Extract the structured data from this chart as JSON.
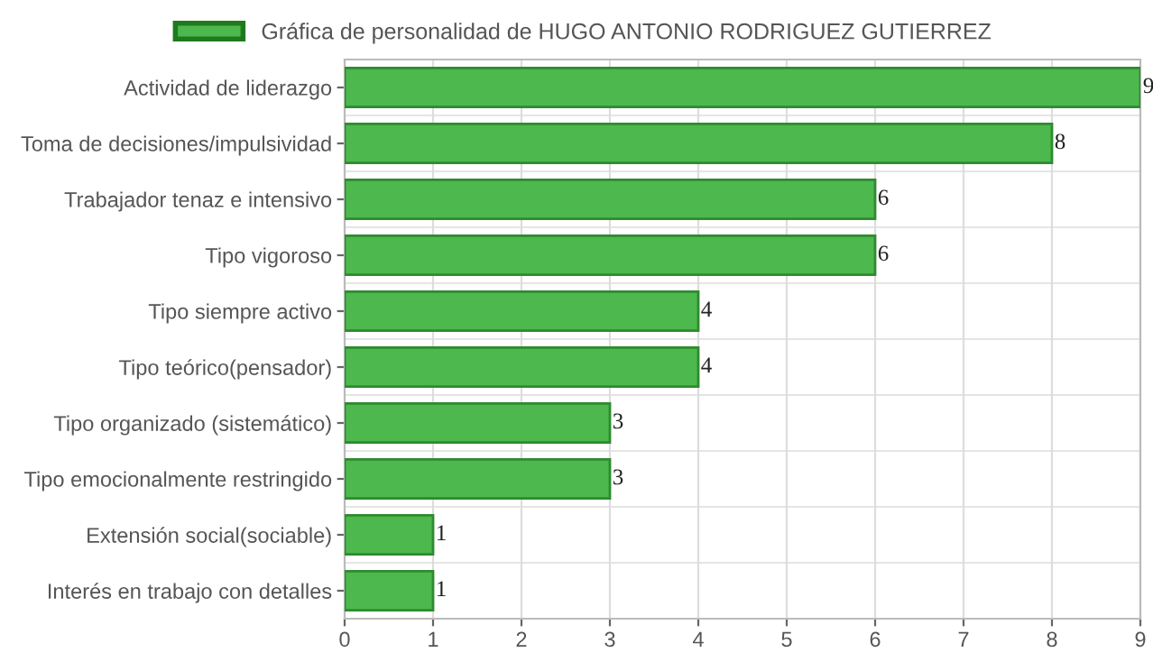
{
  "chart_data": {
    "type": "bar",
    "orientation": "horizontal",
    "categories": [
      "Actividad de liderazgo",
      "Toma de decisiones/impulsividad",
      "Trabajador tenaz e intensivo",
      "Tipo vigoroso",
      "Tipo siempre activo",
      "Tipo teórico(pensador)",
      "Tipo organizado (sistemático)",
      "Tipo emocionalmente restringido",
      "Extensión social(sociable)",
      "Interés en trabajo con detalles"
    ],
    "series": [
      {
        "name": "Gráfica de personalidad de HUGO ANTONIO RODRIGUEZ GUTIERREZ",
        "color": "#4db84d",
        "values": [
          9,
          8,
          6,
          6,
          4,
          4,
          3,
          3,
          1,
          1
        ]
      }
    ],
    "xlim": [
      0,
      9
    ],
    "xticks": [
      0,
      1,
      2,
      3,
      4,
      5,
      6,
      7,
      8,
      9
    ],
    "grid": true,
    "legend": "top",
    "data_labels": true
  }
}
